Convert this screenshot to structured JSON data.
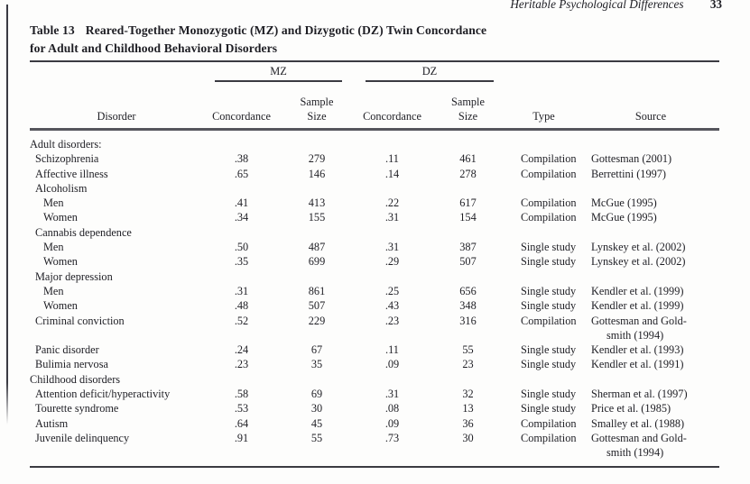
{
  "page": {
    "running_head": "Heritable Psychological Differences",
    "page_number": "33"
  },
  "table": {
    "title_label": "Table 13",
    "title_rest": "Reared-Together Monozygotic (MZ) and Dizygotic (DZ) Twin Concordance",
    "title_line2": "for Adult and Childhood Behavioral Disorders",
    "headers": {
      "disorder": "Disorder",
      "mz": "MZ",
      "dz": "DZ",
      "concordance": "Concordance",
      "sample_line1": "Sample",
      "sample_line2": "Size",
      "type": "Type",
      "source": "Source"
    },
    "rows": [
      {
        "label": "Adult disorders:",
        "indent": 0,
        "mz_c": "",
        "mz_n": "",
        "dz_c": "",
        "dz_n": "",
        "type": "",
        "source": []
      },
      {
        "label": "Schizophrenia",
        "indent": 1,
        "mz_c": ".38",
        "mz_n": "279",
        "dz_c": ".11",
        "dz_n": "461",
        "type": "Compilation",
        "source": [
          "Gottesman (2001)"
        ]
      },
      {
        "label": "Affective illness",
        "indent": 1,
        "mz_c": ".65",
        "mz_n": "146",
        "dz_c": ".14",
        "dz_n": "278",
        "type": "Compilation",
        "source": [
          "Berrettini (1997)"
        ]
      },
      {
        "label": "Alcoholism",
        "indent": 1,
        "mz_c": "",
        "mz_n": "",
        "dz_c": "",
        "dz_n": "",
        "type": "",
        "source": []
      },
      {
        "label": "Men",
        "indent": 2,
        "mz_c": ".41",
        "mz_n": "413",
        "dz_c": ".22",
        "dz_n": "617",
        "type": "Compilation",
        "source": [
          "McGue (1995)"
        ]
      },
      {
        "label": "Women",
        "indent": 2,
        "mz_c": ".34",
        "mz_n": "155",
        "dz_c": ".31",
        "dz_n": "154",
        "type": "Compilation",
        "source": [
          "McGue (1995)"
        ]
      },
      {
        "label": "Cannabis dependence",
        "indent": 1,
        "mz_c": "",
        "mz_n": "",
        "dz_c": "",
        "dz_n": "",
        "type": "",
        "source": []
      },
      {
        "label": "Men",
        "indent": 2,
        "mz_c": ".50",
        "mz_n": "487",
        "dz_c": ".31",
        "dz_n": "387",
        "type": "Single study",
        "source": [
          "Lynskey et al. (2002)"
        ]
      },
      {
        "label": "Women",
        "indent": 2,
        "mz_c": ".35",
        "mz_n": "699",
        "dz_c": ".29",
        "dz_n": "507",
        "type": "Single study",
        "source": [
          "Lynskey et al. (2002)"
        ]
      },
      {
        "label": "Major depression",
        "indent": 1,
        "mz_c": "",
        "mz_n": "",
        "dz_c": "",
        "dz_n": "",
        "type": "",
        "source": []
      },
      {
        "label": "Men",
        "indent": 2,
        "mz_c": ".31",
        "mz_n": "861",
        "dz_c": ".25",
        "dz_n": "656",
        "type": "Single study",
        "source": [
          "Kendler et al. (1999)"
        ]
      },
      {
        "label": "Women",
        "indent": 2,
        "mz_c": ".48",
        "mz_n": "507",
        "dz_c": ".43",
        "dz_n": "348",
        "type": "Single study",
        "source": [
          "Kendler et al. (1999)"
        ]
      },
      {
        "label": "Criminal conviction",
        "indent": 1,
        "mz_c": ".52",
        "mz_n": "229",
        "dz_c": ".23",
        "dz_n": "316",
        "type": "Compilation",
        "source": [
          "Gottesman and Gold-",
          "smith (1994)"
        ]
      },
      {
        "label": "Panic disorder",
        "indent": 1,
        "mz_c": ".24",
        "mz_n": "67",
        "dz_c": ".11",
        "dz_n": "55",
        "type": "Single study",
        "source": [
          "Kendler et al. (1993)"
        ]
      },
      {
        "label": "Bulimia nervosa",
        "indent": 1,
        "mz_c": ".23",
        "mz_n": "35",
        "dz_c": ".09",
        "dz_n": "23",
        "type": "Single study",
        "source": [
          "Kendler et al. (1991)"
        ]
      },
      {
        "label": "Childhood disorders",
        "indent": 0,
        "mz_c": "",
        "mz_n": "",
        "dz_c": "",
        "dz_n": "",
        "type": "",
        "source": []
      },
      {
        "label": "Attention deficit/hyperactivity",
        "indent": 1,
        "mz_c": ".58",
        "mz_n": "69",
        "dz_c": ".31",
        "dz_n": "32",
        "type": "Single study",
        "source": [
          "Sherman et al. (1997)"
        ]
      },
      {
        "label": "Tourette syndrome",
        "indent": 1,
        "mz_c": ".53",
        "mz_n": "30",
        "dz_c": ".08",
        "dz_n": "13",
        "type": "Single study",
        "source": [
          "Price et al. (1985)"
        ]
      },
      {
        "label": "Autism",
        "indent": 1,
        "mz_c": ".64",
        "mz_n": "45",
        "dz_c": ".09",
        "dz_n": "36",
        "type": "Compilation",
        "source": [
          "Smalley et al. (1988)"
        ]
      },
      {
        "label": "Juvenile delinquency",
        "indent": 1,
        "mz_c": ".91",
        "mz_n": "55",
        "dz_c": ".73",
        "dz_n": "30",
        "type": "Compilation",
        "source": [
          "Gottesman and Gold-",
          "smith (1994)"
        ]
      }
    ],
    "colors": {
      "rule": "#3b3b42",
      "thick_rule": "#55555c",
      "text": "#1e1e24"
    }
  }
}
